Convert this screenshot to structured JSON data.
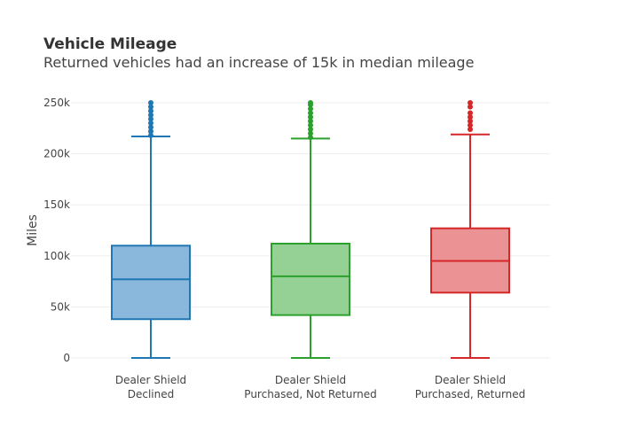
{
  "chart_data": {
    "type": "box",
    "title": "Vehicle Mileage",
    "subtitle": "Returned vehicles had an increase of 15k in median mileage",
    "ylabel": "Miles",
    "ylim": [
      0,
      250000
    ],
    "yticks": [
      {
        "value": 0,
        "label": "0"
      },
      {
        "value": 50000,
        "label": "50k"
      },
      {
        "value": 100000,
        "label": "100k"
      },
      {
        "value": 150000,
        "label": "150k"
      },
      {
        "value": 200000,
        "label": "200k"
      },
      {
        "value": 250000,
        "label": "250k"
      }
    ],
    "grid": true,
    "series": [
      {
        "label_lines": [
          "Dealer Shield",
          "Declined"
        ],
        "color": "#1f77b4",
        "fill": "#8ab8dc",
        "min": 0,
        "q1": 38000,
        "median": 77000,
        "q3": 110000,
        "max": 217000,
        "outliers": [
          218000,
          222000,
          226000,
          230000,
          234000,
          238000,
          242000,
          246000,
          250000
        ]
      },
      {
        "label_lines": [
          "Dealer Shield",
          "Purchased, Not Returned"
        ],
        "color": "#2ca02c",
        "fill": "#95d195",
        "min": 0,
        "q1": 42000,
        "median": 80000,
        "q3": 112000,
        "max": 215000,
        "outliers": [
          216000,
          220000,
          224000,
          228000,
          232000,
          236000,
          240000,
          244000,
          248000,
          250000
        ]
      },
      {
        "label_lines": [
          "Dealer Shield",
          "Purchased, Returned"
        ],
        "color": "#d62728",
        "fill": "#eb9295",
        "min": 0,
        "q1": 64000,
        "median": 95000,
        "q3": 127000,
        "max": 219000,
        "outliers": [
          224000,
          228000,
          232000,
          236000,
          240000,
          246000,
          250000
        ]
      }
    ]
  }
}
